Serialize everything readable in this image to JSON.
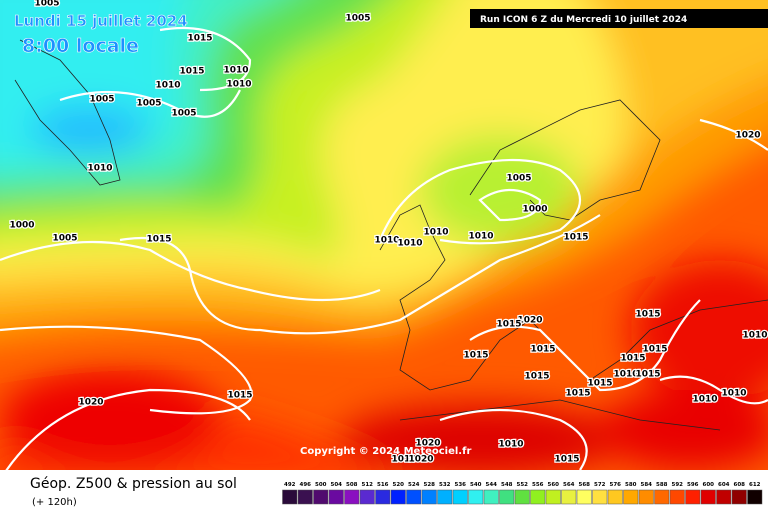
{
  "header": {
    "date": "Lundi 15 juillet 2024",
    "time": "8:00 locale",
    "run": "Run ICON 6 Z du Mercredi 10 juillet 2024"
  },
  "copyright": "Copyright © 2024 Meteociel.fr",
  "footer": {
    "title": "Géop. Z500 & pression au sol",
    "lead": "(+ 120h)"
  },
  "isobar_labels": [
    "1005",
    "1005",
    "1015",
    "1015",
    "1010",
    "1010",
    "1010",
    "1005",
    "1005",
    "1005",
    "1010",
    "1000",
    "1005",
    "1015",
    "1005",
    "1000",
    "1010",
    "1010",
    "1010",
    "1010",
    "1015",
    "1020",
    "1020",
    "1015",
    "1015",
    "1015",
    "1015",
    "1015",
    "1015",
    "1010",
    "1015",
    "1010",
    "1015",
    "1015",
    "1015",
    "1010",
    "1010",
    "1015",
    "1020",
    "1010",
    "1020",
    "1010",
    "1020",
    "1015"
  ],
  "colorbar": {
    "values": [
      492,
      496,
      500,
      504,
      508,
      512,
      516,
      520,
      524,
      528,
      532,
      536,
      540,
      544,
      548,
      552,
      556,
      560,
      564,
      568,
      572,
      576,
      580,
      584,
      588,
      592,
      596,
      600,
      604,
      608,
      612
    ],
    "colors": [
      "#2a0a3a",
      "#3a1050",
      "#500a6e",
      "#6a0aa0",
      "#8a10c0",
      "#5a2ad0",
      "#2a2ae0",
      "#0020ff",
      "#0050ff",
      "#0080ff",
      "#00b0ff",
      "#00d0ff",
      "#30f0f0",
      "#40f0c0",
      "#40e080",
      "#60e040",
      "#90f020",
      "#c0f020",
      "#e8f040",
      "#ffff60",
      "#ffe040",
      "#ffc820",
      "#ffa800",
      "#ff8c00",
      "#ff6800",
      "#ff4800",
      "#ff2000",
      "#e00000",
      "#c00000",
      "#900000",
      "#100000"
    ]
  }
}
